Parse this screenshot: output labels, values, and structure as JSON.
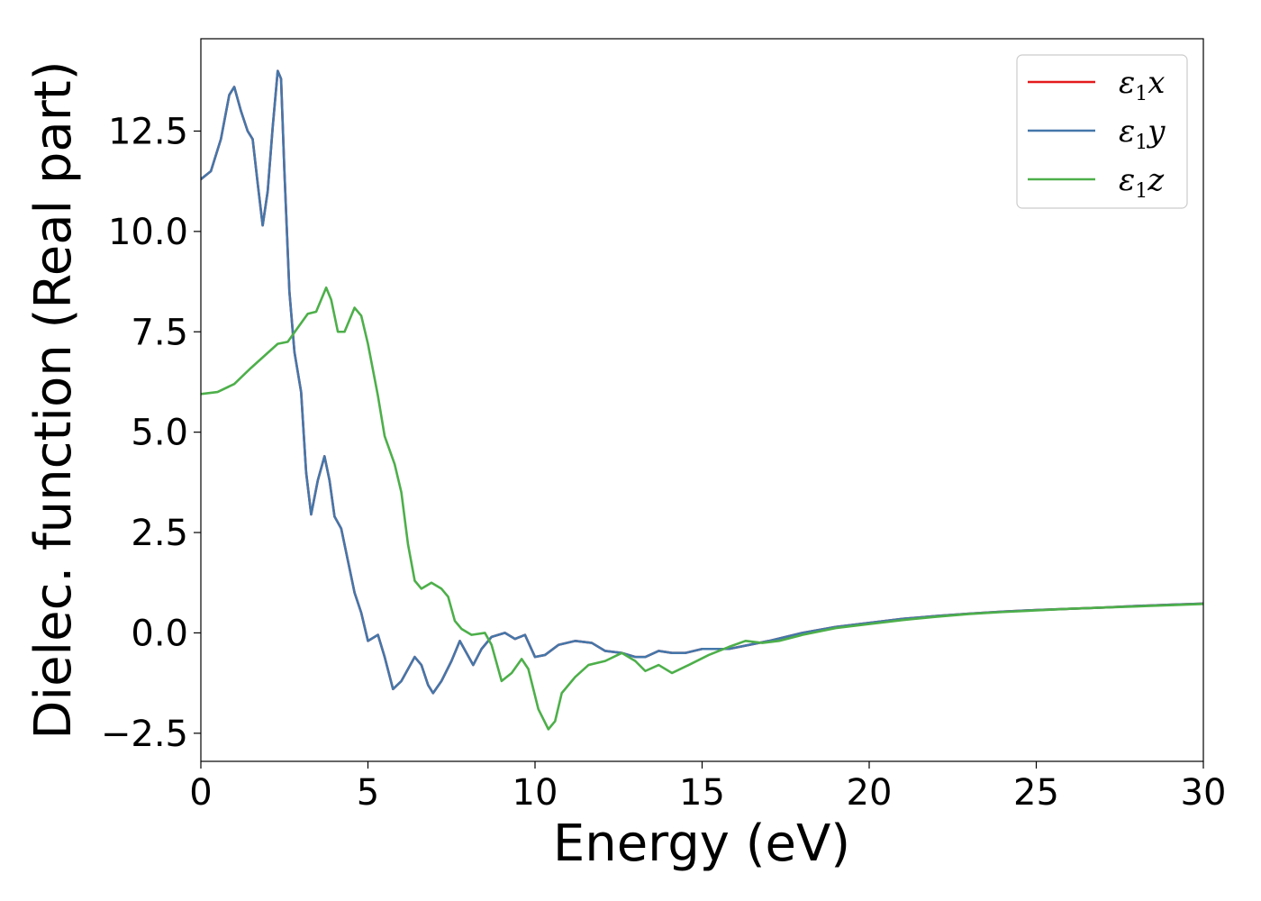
{
  "chart_data": {
    "type": "line",
    "title": "",
    "xlabel": "Energy (eV)",
    "ylabel": "Dielec. function (Real part)",
    "xlim": [
      0,
      30
    ],
    "ylim": [
      -3.2,
      14.8
    ],
    "xticks": [
      0,
      5,
      10,
      15,
      20,
      25,
      30
    ],
    "xtick_labels": [
      "0",
      "5",
      "10",
      "15",
      "20",
      "25",
      "30"
    ],
    "yticks": [
      -2.5,
      0.0,
      2.5,
      5.0,
      7.5,
      10.0,
      12.5
    ],
    "ytick_labels": [
      "−2.5",
      "0.0",
      "2.5",
      "5.0",
      "7.5",
      "10.0",
      "12.5"
    ],
    "grid": false,
    "legend_position": "top-right",
    "series": [
      {
        "name": "ε₁x",
        "legend": {
          "symbol": "ε",
          "sub": "1",
          "axis": "x"
        },
        "color": "#e41a1c",
        "points": [
          [
            0,
            11.3
          ],
          [
            0.3,
            11.5
          ],
          [
            0.6,
            12.3
          ],
          [
            0.85,
            13.4
          ],
          [
            1.0,
            13.6
          ],
          [
            1.2,
            13.0
          ],
          [
            1.4,
            12.5
          ],
          [
            1.55,
            12.3
          ],
          [
            1.7,
            11.2
          ],
          [
            1.85,
            10.15
          ],
          [
            2.0,
            11.0
          ],
          [
            2.15,
            12.6
          ],
          [
            2.3,
            14.0
          ],
          [
            2.4,
            13.8
          ],
          [
            2.5,
            11.5
          ],
          [
            2.65,
            8.5
          ],
          [
            2.8,
            7.0
          ],
          [
            3.0,
            6.0
          ],
          [
            3.15,
            4.0
          ],
          [
            3.3,
            2.95
          ],
          [
            3.5,
            3.8
          ],
          [
            3.7,
            4.4
          ],
          [
            3.85,
            3.8
          ],
          [
            4.0,
            2.9
          ],
          [
            4.2,
            2.6
          ],
          [
            4.4,
            1.8
          ],
          [
            4.6,
            1.0
          ],
          [
            4.8,
            0.5
          ],
          [
            5.0,
            -0.2
          ],
          [
            5.3,
            -0.05
          ],
          [
            5.5,
            -0.6
          ],
          [
            5.75,
            -1.4
          ],
          [
            6.0,
            -1.2
          ],
          [
            6.2,
            -0.9
          ],
          [
            6.4,
            -0.6
          ],
          [
            6.6,
            -0.8
          ],
          [
            6.8,
            -1.3
          ],
          [
            6.95,
            -1.5
          ],
          [
            7.2,
            -1.2
          ],
          [
            7.5,
            -0.7
          ],
          [
            7.75,
            -0.2
          ],
          [
            7.95,
            -0.5
          ],
          [
            8.15,
            -0.8
          ],
          [
            8.4,
            -0.4
          ],
          [
            8.7,
            -0.1
          ],
          [
            9.1,
            0.0
          ],
          [
            9.4,
            -0.15
          ],
          [
            9.7,
            -0.05
          ],
          [
            10.0,
            -0.6
          ],
          [
            10.3,
            -0.55
          ],
          [
            10.7,
            -0.3
          ],
          [
            11.2,
            -0.2
          ],
          [
            11.7,
            -0.25
          ],
          [
            12.1,
            -0.45
          ],
          [
            12.6,
            -0.5
          ],
          [
            13.0,
            -0.6
          ],
          [
            13.3,
            -0.6
          ],
          [
            13.7,
            -0.45
          ],
          [
            14.1,
            -0.5
          ],
          [
            14.5,
            -0.5
          ],
          [
            15.0,
            -0.4
          ],
          [
            15.8,
            -0.4
          ],
          [
            16.4,
            -0.3
          ],
          [
            17.0,
            -0.2
          ],
          [
            18.0,
            0.0
          ],
          [
            19.0,
            0.15
          ],
          [
            20.0,
            0.25
          ],
          [
            21.0,
            0.35
          ],
          [
            22.0,
            0.42
          ],
          [
            23.0,
            0.48
          ],
          [
            24.0,
            0.53
          ],
          [
            25.0,
            0.57
          ],
          [
            26.0,
            0.6
          ],
          [
            27.0,
            0.63
          ],
          [
            28.0,
            0.67
          ],
          [
            29.0,
            0.7
          ],
          [
            30.0,
            0.73
          ]
        ]
      },
      {
        "name": "ε₁y",
        "legend": {
          "symbol": "ε",
          "sub": "1",
          "axis": "y"
        },
        "color": "#4477aa",
        "points": [
          [
            0,
            11.3
          ],
          [
            0.3,
            11.5
          ],
          [
            0.6,
            12.3
          ],
          [
            0.85,
            13.4
          ],
          [
            1.0,
            13.6
          ],
          [
            1.2,
            13.0
          ],
          [
            1.4,
            12.5
          ],
          [
            1.55,
            12.3
          ],
          [
            1.7,
            11.2
          ],
          [
            1.85,
            10.15
          ],
          [
            2.0,
            11.0
          ],
          [
            2.15,
            12.6
          ],
          [
            2.3,
            14.0
          ],
          [
            2.4,
            13.8
          ],
          [
            2.5,
            11.5
          ],
          [
            2.65,
            8.5
          ],
          [
            2.8,
            7.0
          ],
          [
            3.0,
            6.0
          ],
          [
            3.15,
            4.0
          ],
          [
            3.3,
            2.95
          ],
          [
            3.5,
            3.8
          ],
          [
            3.7,
            4.4
          ],
          [
            3.85,
            3.8
          ],
          [
            4.0,
            2.9
          ],
          [
            4.2,
            2.6
          ],
          [
            4.4,
            1.8
          ],
          [
            4.6,
            1.0
          ],
          [
            4.8,
            0.5
          ],
          [
            5.0,
            -0.2
          ],
          [
            5.3,
            -0.05
          ],
          [
            5.5,
            -0.6
          ],
          [
            5.75,
            -1.4
          ],
          [
            6.0,
            -1.2
          ],
          [
            6.2,
            -0.9
          ],
          [
            6.4,
            -0.6
          ],
          [
            6.6,
            -0.8
          ],
          [
            6.8,
            -1.3
          ],
          [
            6.95,
            -1.5
          ],
          [
            7.2,
            -1.2
          ],
          [
            7.5,
            -0.7
          ],
          [
            7.75,
            -0.2
          ],
          [
            7.95,
            -0.5
          ],
          [
            8.15,
            -0.8
          ],
          [
            8.4,
            -0.4
          ],
          [
            8.7,
            -0.1
          ],
          [
            9.1,
            0.0
          ],
          [
            9.4,
            -0.15
          ],
          [
            9.7,
            -0.05
          ],
          [
            10.0,
            -0.6
          ],
          [
            10.3,
            -0.55
          ],
          [
            10.7,
            -0.3
          ],
          [
            11.2,
            -0.2
          ],
          [
            11.7,
            -0.25
          ],
          [
            12.1,
            -0.45
          ],
          [
            12.6,
            -0.5
          ],
          [
            13.0,
            -0.6
          ],
          [
            13.3,
            -0.6
          ],
          [
            13.7,
            -0.45
          ],
          [
            14.1,
            -0.5
          ],
          [
            14.5,
            -0.5
          ],
          [
            15.0,
            -0.4
          ],
          [
            15.8,
            -0.4
          ],
          [
            16.4,
            -0.3
          ],
          [
            17.0,
            -0.2
          ],
          [
            18.0,
            0.0
          ],
          [
            19.0,
            0.15
          ],
          [
            20.0,
            0.25
          ],
          [
            21.0,
            0.35
          ],
          [
            22.0,
            0.42
          ],
          [
            23.0,
            0.48
          ],
          [
            24.0,
            0.53
          ],
          [
            25.0,
            0.57
          ],
          [
            26.0,
            0.6
          ],
          [
            27.0,
            0.63
          ],
          [
            28.0,
            0.67
          ],
          [
            29.0,
            0.7
          ],
          [
            30.0,
            0.73
          ]
        ]
      },
      {
        "name": "ε₁z",
        "legend": {
          "symbol": "ε",
          "sub": "1",
          "axis": "z"
        },
        "color": "#4daf4a",
        "points": [
          [
            0,
            5.95
          ],
          [
            0.5,
            6.0
          ],
          [
            1.0,
            6.2
          ],
          [
            1.5,
            6.6
          ],
          [
            1.9,
            6.9
          ],
          [
            2.3,
            7.2
          ],
          [
            2.6,
            7.25
          ],
          [
            2.9,
            7.6
          ],
          [
            3.2,
            7.95
          ],
          [
            3.45,
            8.0
          ],
          [
            3.75,
            8.6
          ],
          [
            3.9,
            8.3
          ],
          [
            4.1,
            7.5
          ],
          [
            4.3,
            7.5
          ],
          [
            4.6,
            8.1
          ],
          [
            4.8,
            7.9
          ],
          [
            5.0,
            7.2
          ],
          [
            5.3,
            5.9
          ],
          [
            5.5,
            4.9
          ],
          [
            5.8,
            4.2
          ],
          [
            6.0,
            3.5
          ],
          [
            6.2,
            2.2
          ],
          [
            6.4,
            1.3
          ],
          [
            6.6,
            1.1
          ],
          [
            6.9,
            1.25
          ],
          [
            7.2,
            1.1
          ],
          [
            7.4,
            0.9
          ],
          [
            7.6,
            0.3
          ],
          [
            7.8,
            0.1
          ],
          [
            8.1,
            -0.05
          ],
          [
            8.5,
            0.0
          ],
          [
            8.7,
            -0.3
          ],
          [
            9.0,
            -1.2
          ],
          [
            9.3,
            -1.0
          ],
          [
            9.6,
            -0.65
          ],
          [
            9.8,
            -0.9
          ],
          [
            10.1,
            -1.9
          ],
          [
            10.4,
            -2.4
          ],
          [
            10.6,
            -2.2
          ],
          [
            10.8,
            -1.5
          ],
          [
            11.2,
            -1.1
          ],
          [
            11.6,
            -0.8
          ],
          [
            12.1,
            -0.7
          ],
          [
            12.6,
            -0.5
          ],
          [
            13.0,
            -0.7
          ],
          [
            13.3,
            -0.95
          ],
          [
            13.7,
            -0.8
          ],
          [
            14.1,
            -1.0
          ],
          [
            14.6,
            -0.8
          ],
          [
            15.2,
            -0.55
          ],
          [
            15.8,
            -0.35
          ],
          [
            16.3,
            -0.2
          ],
          [
            16.8,
            -0.25
          ],
          [
            17.3,
            -0.2
          ],
          [
            18.0,
            -0.05
          ],
          [
            19.0,
            0.12
          ],
          [
            20.0,
            0.22
          ],
          [
            21.0,
            0.32
          ],
          [
            22.0,
            0.4
          ],
          [
            23.0,
            0.47
          ],
          [
            24.0,
            0.52
          ],
          [
            25.0,
            0.56
          ],
          [
            26.0,
            0.6
          ],
          [
            27.0,
            0.63
          ],
          [
            28.0,
            0.66
          ],
          [
            29.0,
            0.69
          ],
          [
            30.0,
            0.72
          ]
        ]
      }
    ]
  }
}
